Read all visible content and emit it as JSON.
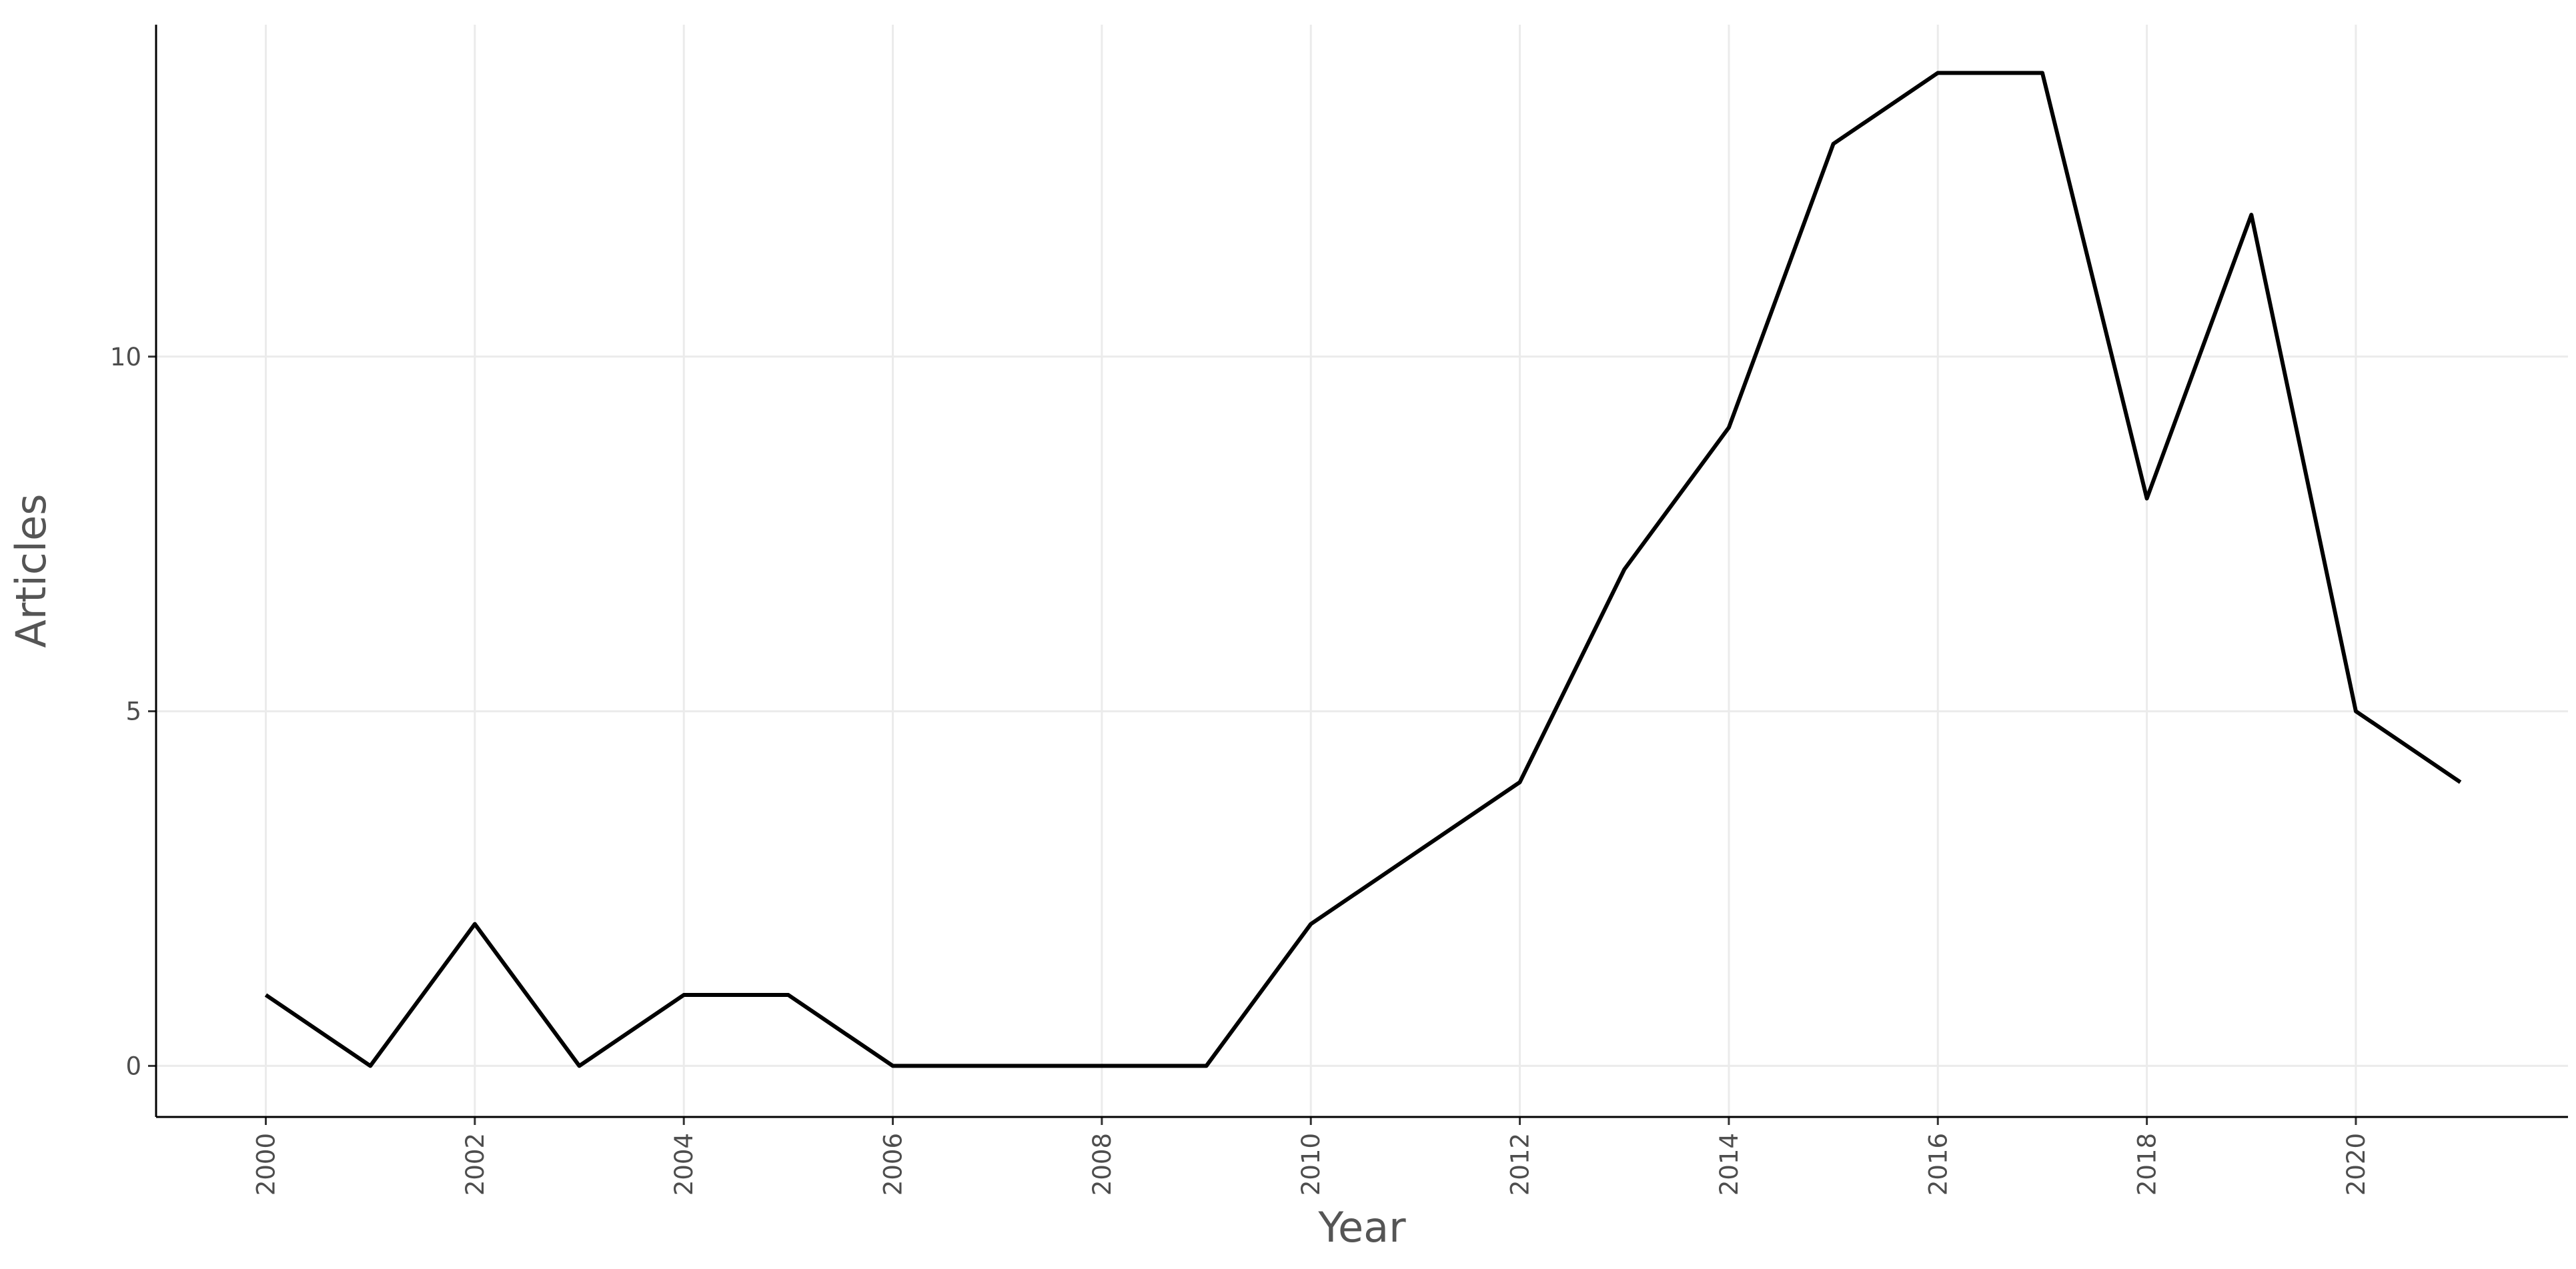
{
  "chart_data": {
    "type": "line",
    "x_label": "Year",
    "y_label": "Articles",
    "x": [
      2000,
      2001,
      2002,
      2003,
      2004,
      2005,
      2006,
      2007,
      2008,
      2009,
      2010,
      2011,
      2012,
      2013,
      2014,
      2015,
      2016,
      2017,
      2018,
      2019,
      2020,
      2021
    ],
    "series": [
      {
        "name": "Articles",
        "color": "#000000",
        "values": [
          1,
          0,
          2,
          0,
          1,
          1,
          0,
          0,
          0,
          0,
          2,
          3,
          4,
          7,
          9,
          13,
          14,
          14,
          8,
          12,
          5,
          4
        ]
      }
    ],
    "xlim": [
      1998.95,
      2022.03
    ],
    "ylim": [
      -0.72,
      14.68
    ],
    "xticks": [
      2000,
      2002,
      2004,
      2006,
      2008,
      2010,
      2012,
      2014,
      2016,
      2018,
      2020
    ],
    "yticks": [
      0,
      5,
      10
    ],
    "grid": true
  }
}
